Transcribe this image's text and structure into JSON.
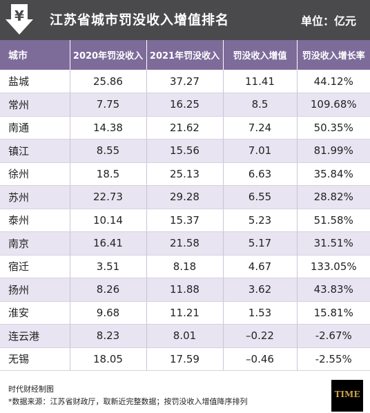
{
  "header": {
    "title": "江苏省城市罚没收入增值排名",
    "unit": "单位：亿元"
  },
  "chart_data": {
    "type": "table",
    "columns": [
      "城市",
      "2020年罚没收入",
      "2021年罚没收入",
      "罚没收入增值",
      "罚没收入增长率"
    ],
    "rows": [
      [
        "盐城",
        "25.86",
        "37.27",
        "11.41",
        "44.12%"
      ],
      [
        "常州",
        "7.75",
        "16.25",
        "8.5",
        "109.68%"
      ],
      [
        "南通",
        "14.38",
        "21.62",
        "7.24",
        "50.35%"
      ],
      [
        "镇江",
        "8.55",
        "15.56",
        "7.01",
        "81.99%"
      ],
      [
        "徐州",
        "18.5",
        "25.13",
        "6.63",
        "35.84%"
      ],
      [
        "苏州",
        "22.73",
        "29.28",
        "6.55",
        "28.82%"
      ],
      [
        "泰州",
        "10.14",
        "15.37",
        "5.23",
        "51.58%"
      ],
      [
        "南京",
        "16.41",
        "21.58",
        "5.17",
        "31.51%"
      ],
      [
        "宿迁",
        "3.51",
        "8.18",
        "4.67",
        "133.05%"
      ],
      [
        "扬州",
        "8.26",
        "11.88",
        "3.62",
        "43.83%"
      ],
      [
        "淮安",
        "9.68",
        "11.21",
        "1.53",
        "15.81%"
      ],
      [
        "连云港",
        "8.23",
        "8.01",
        "–0.22",
        "-2.67%"
      ],
      [
        "无锡",
        "18.05",
        "17.59",
        "–0.46",
        "-2.55%"
      ]
    ]
  },
  "footer": {
    "credit": "时代财经制图",
    "source": "*数据来源：江苏省财政厅，取新近完整数据；按罚没收入增值降序排列",
    "badge": "TIME"
  },
  "colors": {
    "header_bg": "#4a4a4c",
    "table_header_bg": "#7d6b9a",
    "row_alt_bg": "#e8e4f1"
  },
  "icons": {
    "logo": "yen-arrow-down-icon"
  }
}
